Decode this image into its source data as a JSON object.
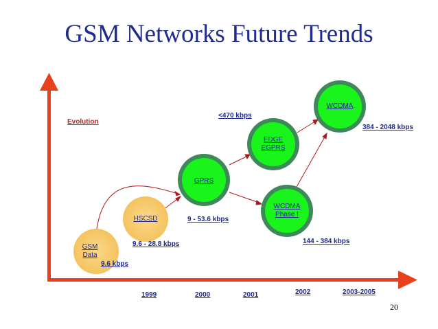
{
  "title": "GSM Networks Future Trends",
  "axis_label": "Evolution",
  "page_number": "20",
  "colors": {
    "title": "#1f2b8f",
    "axis": "#e8401c",
    "axis_label": "#c0282d",
    "node_green_fill": "#19f41a",
    "node_green_ring": "#3d8a58",
    "node_orange_fill": "#f7c96a",
    "connector": "#b01a1a"
  },
  "nodes": [
    {
      "id": "gsm",
      "label": "GSM\nData",
      "style": "orange"
    },
    {
      "id": "hscsd",
      "label": "HSCSD",
      "style": "orange"
    },
    {
      "id": "gprs",
      "label": "GPRS",
      "style": "green"
    },
    {
      "id": "edge",
      "label": "EDGE\nEGPRS",
      "style": "green"
    },
    {
      "id": "wcdma1",
      "label": "WCDMA\nPhase I",
      "style": "green"
    },
    {
      "id": "wcdma",
      "label": "WCDMA",
      "style": "green"
    }
  ],
  "rates": {
    "gsm": "9.6 kbps",
    "hscsd": "9.6 - 28.8 kbps",
    "gprs": "9 - 53.6 kbps",
    "edge": "<470 kbps",
    "wcdma1": "144 - 384 kbps",
    "wcdma": "384 - 2048 kbps"
  },
  "years": [
    "1999",
    "2000",
    "2001",
    "2002",
    "2003-2005"
  ]
}
